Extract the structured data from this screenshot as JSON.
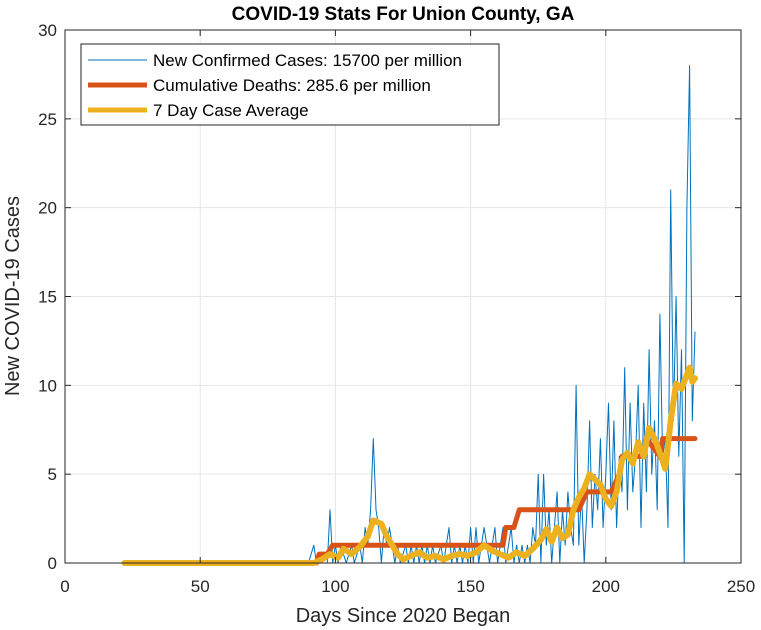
{
  "chart_data": {
    "type": "line",
    "title": "COVID-19 Stats For Union County, GA",
    "xlabel": "Days Since 2020 Began",
    "ylabel": "New COVID-19 Cases",
    "xlim": [
      0,
      250
    ],
    "ylim": [
      0,
      30
    ],
    "xticks": [
      0,
      50,
      100,
      150,
      200,
      250
    ],
    "yticks": [
      0,
      5,
      10,
      15,
      20,
      25,
      30
    ],
    "grid": true,
    "legend_position": "top-left",
    "series": [
      {
        "name": "New Confirmed Cases: 15700 per million",
        "color": "#0072BD",
        "style": "thin",
        "points": [
          [
            22,
            0
          ],
          [
            90,
            0
          ],
          [
            92,
            1
          ],
          [
            93,
            0
          ],
          [
            97,
            0
          ],
          [
            98,
            3
          ],
          [
            99,
            0
          ],
          [
            100,
            1
          ],
          [
            101,
            0
          ],
          [
            102,
            1
          ],
          [
            104,
            0
          ],
          [
            106,
            1
          ],
          [
            107,
            0
          ],
          [
            109,
            1
          ],
          [
            110,
            0
          ],
          [
            111,
            2
          ],
          [
            112,
            1
          ],
          [
            113,
            3
          ],
          [
            114,
            7
          ],
          [
            115,
            3
          ],
          [
            116,
            2
          ],
          [
            117,
            0
          ],
          [
            118,
            2
          ],
          [
            119,
            1
          ],
          [
            120,
            2
          ],
          [
            121,
            1
          ],
          [
            122,
            0
          ],
          [
            123,
            1
          ],
          [
            124,
            0
          ],
          [
            126,
            1
          ],
          [
            127,
            0
          ],
          [
            128,
            1
          ],
          [
            129,
            0
          ],
          [
            130,
            1
          ],
          [
            131,
            0
          ],
          [
            132,
            1
          ],
          [
            133,
            0
          ],
          [
            134,
            1
          ],
          [
            135,
            0
          ],
          [
            136,
            1
          ],
          [
            137,
            0
          ],
          [
            139,
            1
          ],
          [
            140,
            0
          ],
          [
            141,
            1
          ],
          [
            142,
            2
          ],
          [
            143,
            0
          ],
          [
            144,
            1
          ],
          [
            145,
            0
          ],
          [
            146,
            1
          ],
          [
            147,
            0
          ],
          [
            148,
            1
          ],
          [
            149,
            0
          ],
          [
            150,
            2
          ],
          [
            151,
            0
          ],
          [
            152,
            2
          ],
          [
            153,
            0
          ],
          [
            154,
            1
          ],
          [
            155,
            2
          ],
          [
            156,
            1
          ],
          [
            157,
            0
          ],
          [
            158,
            1
          ],
          [
            159,
            2
          ],
          [
            160,
            0
          ],
          [
            161,
            1
          ],
          [
            162,
            2
          ],
          [
            163,
            0
          ],
          [
            164,
            1
          ],
          [
            165,
            2
          ],
          [
            166,
            0
          ],
          [
            167,
            1
          ],
          [
            168,
            0
          ],
          [
            169,
            1
          ],
          [
            170,
            0
          ],
          [
            171,
            1
          ],
          [
            172,
            0
          ],
          [
            173,
            2
          ],
          [
            174,
            1
          ],
          [
            175,
            5
          ],
          [
            176,
            0
          ],
          [
            177,
            5
          ],
          [
            178,
            1
          ],
          [
            179,
            3
          ],
          [
            180,
            0
          ],
          [
            181,
            2
          ],
          [
            182,
            4
          ],
          [
            183,
            0
          ],
          [
            184,
            3
          ],
          [
            185,
            1
          ],
          [
            186,
            4
          ],
          [
            187,
            2
          ],
          [
            188,
            1
          ],
          [
            189,
            10
          ],
          [
            190,
            1
          ],
          [
            191,
            4
          ],
          [
            192,
            0
          ],
          [
            193,
            3
          ],
          [
            194,
            8
          ],
          [
            195,
            2
          ],
          [
            196,
            5
          ],
          [
            197,
            3
          ],
          [
            198,
            7
          ],
          [
            199,
            2
          ],
          [
            200,
            5
          ],
          [
            201,
            9
          ],
          [
            202,
            3
          ],
          [
            203,
            8
          ],
          [
            204,
            2
          ],
          [
            205,
            6
          ],
          [
            206,
            4
          ],
          [
            207,
            11
          ],
          [
            208,
            3
          ],
          [
            209,
            9
          ],
          [
            210,
            4
          ],
          [
            211,
            6
          ],
          [
            212,
            10
          ],
          [
            213,
            2
          ],
          [
            214,
            9
          ],
          [
            215,
            4
          ],
          [
            216,
            12
          ],
          [
            217,
            5
          ],
          [
            218,
            8
          ],
          [
            219,
            3
          ],
          [
            220,
            14
          ],
          [
            221,
            6
          ],
          [
            222,
            7
          ],
          [
            223,
            2
          ],
          [
            224,
            21
          ],
          [
            225,
            8
          ],
          [
            226,
            15
          ],
          [
            227,
            6
          ],
          [
            228,
            12
          ],
          [
            229,
            0
          ],
          [
            230,
            20
          ],
          [
            231,
            28
          ],
          [
            232,
            8
          ],
          [
            233,
            13
          ]
        ]
      },
      {
        "name": "Cumulative Deaths: 285.6 per million",
        "color": "#D95319",
        "style": "thick",
        "points": [
          [
            22,
            0
          ],
          [
            93,
            0
          ],
          [
            94,
            0.5
          ],
          [
            97,
            0.5
          ],
          [
            99,
            1
          ],
          [
            162,
            1
          ],
          [
            163,
            2
          ],
          [
            166,
            2
          ],
          [
            168,
            3
          ],
          [
            190,
            3
          ],
          [
            193,
            4
          ],
          [
            202,
            4
          ],
          [
            205,
            5
          ],
          [
            206,
            6
          ],
          [
            214,
            6
          ],
          [
            215,
            7
          ],
          [
            220,
            6
          ],
          [
            221,
            7
          ],
          [
            233,
            7
          ]
        ]
      },
      {
        "name": "7 Day Case Average",
        "color": "#EDB120",
        "style": "thick",
        "points": [
          [
            22,
            0
          ],
          [
            92,
            0
          ],
          [
            95,
            0.2
          ],
          [
            98,
            0.5
          ],
          [
            101,
            0.3
          ],
          [
            103,
            0.8
          ],
          [
            106,
            0.5
          ],
          [
            109,
            0.9
          ],
          [
            112,
            1.5
          ],
          [
            114,
            2.4
          ],
          [
            117,
            2.2
          ],
          [
            119,
            1.5
          ],
          [
            121,
            1.0
          ],
          [
            123,
            0.5
          ],
          [
            125,
            0.2
          ],
          [
            128,
            0.4
          ],
          [
            131,
            0.6
          ],
          [
            134,
            0.3
          ],
          [
            137,
            0.4
          ],
          [
            140,
            0.2
          ],
          [
            143,
            0.4
          ],
          [
            146,
            0.5
          ],
          [
            149,
            0.4
          ],
          [
            152,
            0.6
          ],
          [
            155,
            1.0
          ],
          [
            158,
            0.7
          ],
          [
            161,
            0.5
          ],
          [
            164,
            0.3
          ],
          [
            167,
            0.6
          ],
          [
            170,
            0.4
          ],
          [
            173,
            0.8
          ],
          [
            176,
            1.3
          ],
          [
            178,
            1.9
          ],
          [
            180,
            1.2
          ],
          [
            182,
            2.0
          ],
          [
            184,
            1.4
          ],
          [
            186,
            1.6
          ],
          [
            188,
            3.0
          ],
          [
            190,
            3.7
          ],
          [
            192,
            4.2
          ],
          [
            194,
            5.0
          ],
          [
            196,
            4.7
          ],
          [
            198,
            4.4
          ],
          [
            200,
            3.6
          ],
          [
            202,
            3.2
          ],
          [
            204,
            4.0
          ],
          [
            206,
            5.8
          ],
          [
            208,
            6.2
          ],
          [
            210,
            5.6
          ],
          [
            212,
            6.8
          ],
          [
            214,
            6.0
          ],
          [
            216,
            7.6
          ],
          [
            218,
            7.0
          ],
          [
            220,
            6.2
          ],
          [
            222,
            5.3
          ],
          [
            224,
            8.0
          ],
          [
            226,
            10.1
          ],
          [
            228,
            9.8
          ],
          [
            230,
            10.6
          ],
          [
            231,
            11.0
          ],
          [
            232,
            10.2
          ],
          [
            233,
            10.4
          ]
        ]
      }
    ]
  }
}
